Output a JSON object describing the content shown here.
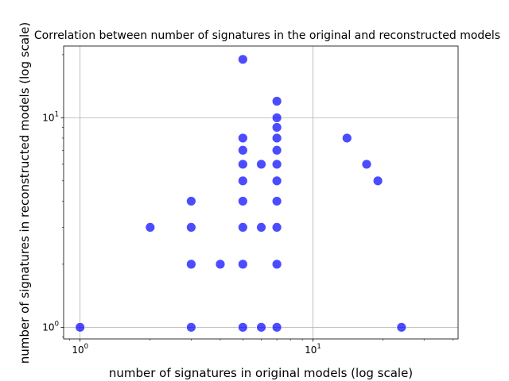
{
  "chart_data": {
    "type": "scatter",
    "title": "Correlation between number of signatures in the original and reconstructed models",
    "xlabel": "number of signatures in original models (log scale)",
    "ylabel": "number of signatures in reconstructed models (log scale)",
    "xscale": "log",
    "yscale": "log",
    "xlim": [
      0.85,
      42
    ],
    "ylim": [
      0.88,
      22
    ],
    "grid": true,
    "marker_color": "#0000ff",
    "x_major_ticks": [
      {
        "value": 1,
        "base": "10",
        "exp": "0"
      },
      {
        "value": 10,
        "base": "10",
        "exp": "1"
      }
    ],
    "y_major_ticks": [
      {
        "value": 1,
        "base": "10",
        "exp": "0"
      },
      {
        "value": 10,
        "base": "10",
        "exp": "1"
      }
    ],
    "points": [
      {
        "x": 1,
        "y": 1
      },
      {
        "x": 2,
        "y": 3
      },
      {
        "x": 3,
        "y": 1
      },
      {
        "x": 3,
        "y": 2
      },
      {
        "x": 3,
        "y": 3
      },
      {
        "x": 3,
        "y": 4
      },
      {
        "x": 4,
        "y": 2
      },
      {
        "x": 5,
        "y": 1
      },
      {
        "x": 5,
        "y": 2
      },
      {
        "x": 5,
        "y": 3
      },
      {
        "x": 5,
        "y": 4
      },
      {
        "x": 5,
        "y": 5
      },
      {
        "x": 5,
        "y": 6
      },
      {
        "x": 5,
        "y": 7
      },
      {
        "x": 5,
        "y": 8
      },
      {
        "x": 5,
        "y": 19
      },
      {
        "x": 6,
        "y": 1
      },
      {
        "x": 6,
        "y": 3
      },
      {
        "x": 6,
        "y": 6
      },
      {
        "x": 7,
        "y": 1
      },
      {
        "x": 7,
        "y": 2
      },
      {
        "x": 7,
        "y": 3
      },
      {
        "x": 7,
        "y": 4
      },
      {
        "x": 7,
        "y": 5
      },
      {
        "x": 7,
        "y": 6
      },
      {
        "x": 7,
        "y": 7
      },
      {
        "x": 7,
        "y": 8
      },
      {
        "x": 7,
        "y": 9
      },
      {
        "x": 7,
        "y": 10
      },
      {
        "x": 7,
        "y": 12
      },
      {
        "x": 14,
        "y": 8
      },
      {
        "x": 17,
        "y": 6
      },
      {
        "x": 19,
        "y": 5
      },
      {
        "x": 24,
        "y": 1
      }
    ]
  }
}
